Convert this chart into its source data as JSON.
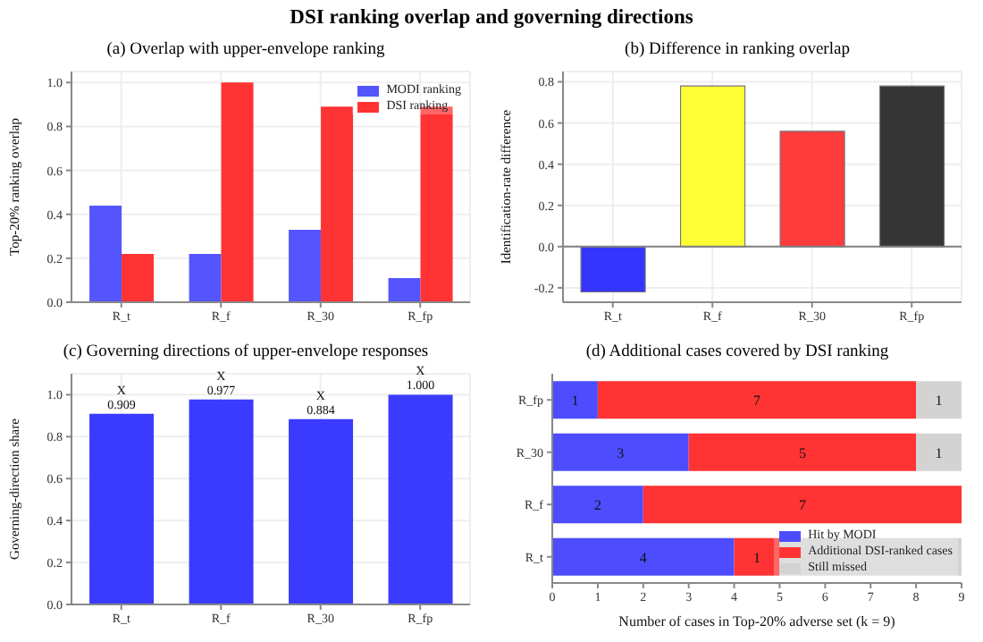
{
  "chart_data": [
    {
      "type": "other",
      "title": "DSI ranking overlap and governing directions"
    },
    {
      "type": "bar",
      "title": "(a) Overlap with upper-envelope ranking",
      "ylabel": "Top-20% ranking overlap",
      "categories": [
        "R_t",
        "R_f",
        "R_30",
        "R_fp"
      ],
      "series": [
        {
          "name": "MODI ranking",
          "color": "#5555ff",
          "values": [
            0.44,
            0.22,
            0.33,
            0.11
          ]
        },
        {
          "name": "DSI ranking",
          "color": "#ff3333",
          "values": [
            0.22,
            1.0,
            0.89,
            0.89
          ]
        }
      ],
      "ylim": [
        0,
        1.05
      ],
      "yticks": [
        {
          "value": 0,
          "label": "0.0"
        },
        {
          "value": 0.2,
          "label": "0.2"
        },
        {
          "value": 0.4,
          "label": "0.4"
        },
        {
          "value": 0.6,
          "label": "0.6"
        },
        {
          "value": 0.8,
          "label": "0.8"
        },
        {
          "value": 1,
          "label": "1.0"
        }
      ],
      "grid": true,
      "legend": "top right"
    },
    {
      "type": "bar",
      "title": "(b) Difference in ranking overlap",
      "ylabel": "Identification-rate difference",
      "categories": [
        "R_t",
        "R_f",
        "R_30",
        "R_fp"
      ],
      "values": [
        -0.22,
        0.78,
        0.56,
        0.78
      ],
      "colors": [
        "#3535ff",
        "#ffff35",
        "#ff3b3b",
        "#353535"
      ],
      "ylim": [
        -0.27,
        0.85
      ],
      "yticks": [
        {
          "value": -0.2,
          "label": "-0.2"
        },
        {
          "value": 0,
          "label": "0.0"
        },
        {
          "value": 0.2,
          "label": "0.2"
        },
        {
          "value": 0.4,
          "label": "0.4"
        },
        {
          "value": 0.6,
          "label": "0.6"
        },
        {
          "value": 0.8,
          "label": "0.8"
        }
      ],
      "grid": true,
      "ref_lines": [
        {
          "axis": "y",
          "value": 0,
          "color": "#808080"
        }
      ]
    },
    {
      "type": "bar",
      "title": "(c) Governing directions of upper-envelope responses",
      "ylabel": "Governing-direction share",
      "categories": [
        "R_t",
        "R_f",
        "R_30",
        "R_fp"
      ],
      "values": [
        0.909,
        0.977,
        0.884,
        1.0
      ],
      "color": "#3b3bff",
      "value_labels": [
        "0.909",
        "0.977",
        "0.884",
        "1.000"
      ],
      "annotations": [
        {
          "text": "X",
          "x": "R_t",
          "y": 0.909
        },
        {
          "text": "X",
          "x": "R_f",
          "y": 0.977
        },
        {
          "text": "X",
          "x": "R_30",
          "y": 0.884
        },
        {
          "text": "X",
          "x": "R_fp",
          "y": 1.0
        }
      ],
      "ylim": [
        0,
        1.1
      ],
      "yticks": [
        {
          "value": 0,
          "label": "0.0"
        },
        {
          "value": 0.2,
          "label": "0.2"
        },
        {
          "value": 0.4,
          "label": "0.4"
        },
        {
          "value": 0.6,
          "label": "0.6"
        },
        {
          "value": 0.8,
          "label": "0.8"
        },
        {
          "value": 1,
          "label": "1.0"
        }
      ],
      "grid": true
    },
    {
      "type": "bar",
      "title": "(d) Additional cases covered by DSI ranking",
      "xlabel": "Number of cases in Top-20% adverse set (k = 9)",
      "orientation": "horizontal",
      "stacked": true,
      "categories": [
        "R_fp",
        "R_30",
        "R_f",
        "R_t"
      ],
      "series": [
        {
          "name": "Hit by MODI",
          "color": "#4d4dff",
          "values": [
            1,
            3,
            2,
            4
          ],
          "value_labels": [
            "1",
            "3",
            "2",
            "4"
          ]
        },
        {
          "name": "Additional DSI-ranked cases",
          "color": "#ff3333",
          "values": [
            7,
            5,
            7,
            1
          ],
          "value_labels": [
            "7",
            "5",
            "7",
            "1"
          ]
        },
        {
          "name": "Still missed",
          "color": "#d3d3d3",
          "values": [
            1,
            1,
            0,
            4
          ],
          "value_labels": [
            "1",
            "1",
            null,
            null
          ]
        }
      ],
      "xlim": [
        0,
        9
      ],
      "xticks": [
        0,
        1,
        2,
        3,
        4,
        5,
        6,
        7,
        8,
        9
      ],
      "legend": "bottom right"
    }
  ]
}
